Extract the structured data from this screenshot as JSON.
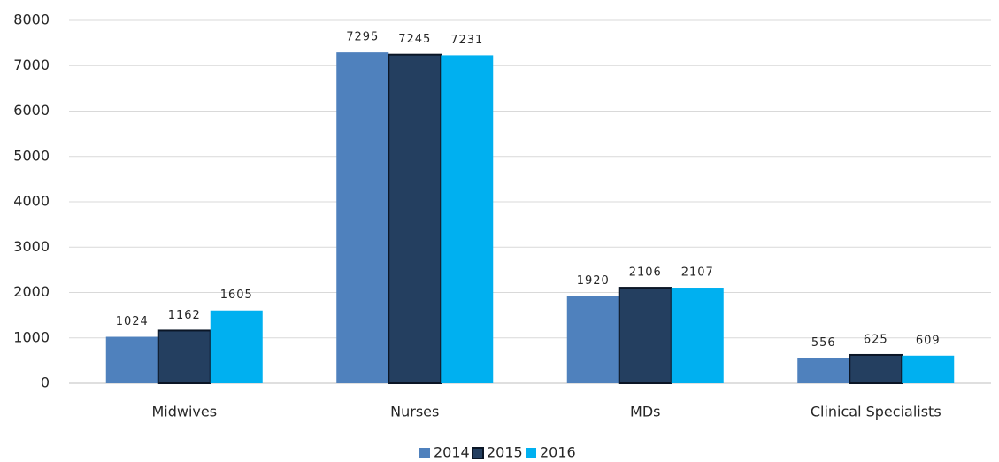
{
  "chart_data": {
    "type": "bar",
    "categories": [
      "Midwives",
      "Nurses",
      "MDs",
      "Clinical Specialists"
    ],
    "series": [
      {
        "name": "2014",
        "color": "#4f81bd",
        "values": [
          1024,
          7295,
          1920,
          556
        ]
      },
      {
        "name": "2015",
        "color": "#243f60",
        "edgecolor": "#0b1626",
        "values": [
          1162,
          7245,
          2106,
          625
        ]
      },
      {
        "name": "2016",
        "color": "#00b0f0",
        "values": [
          1605,
          7231,
          2107,
          609
        ]
      }
    ],
    "ylim": [
      0,
      8000
    ],
    "yticks": [
      0,
      1000,
      2000,
      3000,
      4000,
      5000,
      6000,
      7000,
      8000
    ],
    "grid": true,
    "legend": "bottom"
  }
}
